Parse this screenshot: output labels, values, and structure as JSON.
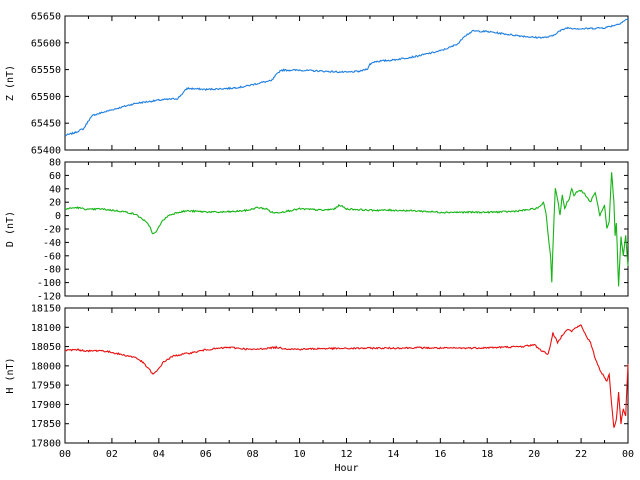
{
  "chart_data": [
    {
      "type": "line",
      "ylabel": "Z (nT)",
      "ylim": [
        65400,
        65650
      ],
      "yticks": [
        65400,
        65450,
        65500,
        65550,
        65600,
        65650
      ],
      "xlim": [
        0,
        24
      ],
      "series": [
        {
          "color": "#1f7fe0",
          "x": [
            0,
            0.4,
            0.8,
            1.0,
            1.2,
            2.0,
            3.0,
            4.0,
            4.8,
            5.0,
            5.2,
            6.0,
            7.0,
            7.6,
            8.0,
            8.5,
            8.8,
            9.0,
            9.2,
            10.0,
            11.0,
            12.0,
            12.6,
            12.9,
            13.0,
            13.2,
            14.0,
            15.0,
            16.0,
            16.5,
            16.8,
            17.0,
            17.4,
            18.0,
            19.0,
            20.0,
            20.5,
            20.8,
            21.0,
            21.4,
            22.0,
            23.0,
            23.6,
            24.0
          ],
          "y": [
            65427,
            65432,
            65440,
            65455,
            65465,
            65475,
            65487,
            65493,
            65496,
            65505,
            65515,
            65513,
            65515,
            65518,
            65522,
            65527,
            65529,
            65540,
            65549,
            65549,
            65547,
            65545,
            65547,
            65552,
            65560,
            65565,
            65568,
            65575,
            65585,
            65593,
            65600,
            65612,
            65622,
            65621,
            65615,
            65610,
            65610,
            65613,
            65620,
            65628,
            65626,
            65628,
            65635,
            65645
          ]
        }
      ]
    },
    {
      "type": "line",
      "ylabel": "D (nT)",
      "ylim": [
        -120,
        80
      ],
      "yticks": [
        -120,
        -100,
        -80,
        -60,
        -40,
        -20,
        0,
        20,
        40,
        60,
        80
      ],
      "xlim": [
        0,
        24
      ],
      "series": [
        {
          "color": "#16b416",
          "x": [
            0,
            0.5,
            1.0,
            1.5,
            2.0,
            2.5,
            3.0,
            3.3,
            3.6,
            3.75,
            3.9,
            4.1,
            4.4,
            4.8,
            5.2,
            5.8,
            6.5,
            7.2,
            7.8,
            8.2,
            8.6,
            8.8,
            9.0,
            9.5,
            10.0,
            10.6,
            11.0,
            11.5,
            11.7,
            12.0,
            13.0,
            14.0,
            15.0,
            16.0,
            17.0,
            18.0,
            19.0,
            19.6,
            20.0,
            20.2,
            20.4,
            20.5,
            20.6,
            20.7,
            20.75,
            20.8,
            20.85,
            20.9,
            21.0,
            21.1,
            21.2,
            21.3,
            21.4,
            21.5,
            21.6,
            21.7,
            21.8,
            22.0,
            22.2,
            22.4,
            22.6,
            22.8,
            23.0,
            23.1,
            23.2,
            23.3,
            23.4,
            23.45,
            23.5,
            23.6,
            23.7,
            23.8,
            23.9,
            24.0
          ],
          "y": [
            10,
            12,
            9,
            10,
            8,
            6,
            2,
            -5,
            -15,
            -28,
            -24,
            -10,
            0,
            5,
            7,
            6,
            5,
            6,
            8,
            12,
            10,
            5,
            4,
            7,
            10,
            9,
            8,
            10,
            16,
            10,
            8,
            8,
            7,
            5,
            5,
            5,
            6,
            8,
            10,
            12,
            20,
            5,
            -30,
            -60,
            -100,
            -50,
            0,
            40,
            25,
            0,
            30,
            10,
            20,
            25,
            40,
            30,
            35,
            38,
            30,
            20,
            35,
            0,
            15,
            -20,
            -10,
            65,
            20,
            -30,
            -10,
            -105,
            -30,
            -60,
            -30,
            -75
          ]
        }
      ]
    },
    {
      "type": "line",
      "ylabel": "H (nT)",
      "ylim": [
        17800,
        18150
      ],
      "yticks": [
        17800,
        17850,
        17900,
        17950,
        18000,
        18050,
        18100,
        18150
      ],
      "xlim": [
        0,
        24
      ],
      "xticks": [
        "00",
        "02",
        "04",
        "06",
        "08",
        "10",
        "12",
        "14",
        "16",
        "18",
        "20",
        "22",
        "00"
      ],
      "xlabel": "Hour",
      "series": [
        {
          "color": "#e81010",
          "x": [
            0,
            0.5,
            1.0,
            1.5,
            2.0,
            2.5,
            3.0,
            3.3,
            3.6,
            3.75,
            3.9,
            4.2,
            4.6,
            5.0,
            5.5,
            6.0,
            6.5,
            7.0,
            7.5,
            8.0,
            8.5,
            9.0,
            9.5,
            10.0,
            11.0,
            12.0,
            13.0,
            14.0,
            15.0,
            16.0,
            17.0,
            18.0,
            19.0,
            19.5,
            20.0,
            20.3,
            20.6,
            20.8,
            21.0,
            21.2,
            21.4,
            21.6,
            21.8,
            22.0,
            22.2,
            22.4,
            22.6,
            22.8,
            23.0,
            23.1,
            23.2,
            23.3,
            23.4,
            23.5,
            23.6,
            23.7,
            23.8,
            23.9,
            24.0
          ],
          "y": [
            18040,
            18042,
            18038,
            18040,
            18035,
            18028,
            18022,
            18010,
            17990,
            17978,
            17985,
            18010,
            18025,
            18030,
            18035,
            18042,
            18045,
            18048,
            18045,
            18042,
            18045,
            18048,
            18044,
            18043,
            18045,
            18045,
            18046,
            18046,
            18047,
            18046,
            18046,
            18047,
            18049,
            18050,
            18055,
            18040,
            18030,
            18085,
            18060,
            18080,
            18095,
            18090,
            18100,
            18105,
            18080,
            18060,
            18020,
            17990,
            17970,
            17960,
            17980,
            17900,
            17840,
            17860,
            17930,
            17850,
            17890,
            17870,
            18005
          ]
        }
      ]
    }
  ]
}
